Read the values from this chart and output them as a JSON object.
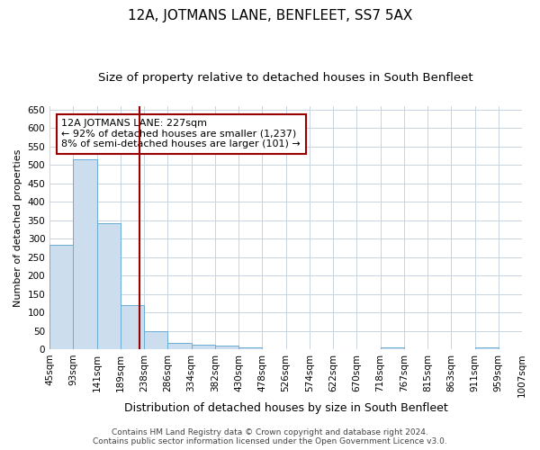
{
  "title": "12A, JOTMANS LANE, BENFLEET, SS7 5AX",
  "subtitle": "Size of property relative to detached houses in South Benfleet",
  "xlabel": "Distribution of detached houses by size in South Benfleet",
  "ylabel": "Number of detached properties",
  "footer_line1": "Contains HM Land Registry data © Crown copyright and database right 2024.",
  "footer_line2": "Contains public sector information licensed under the Open Government Licence v3.0.",
  "annotation_line1": "12A JOTMANS LANE: 227sqm",
  "annotation_line2": "← 92% of detached houses are smaller (1,237)",
  "annotation_line3": "8% of semi-detached houses are larger (101) →",
  "bar_values": [
    284,
    516,
    341,
    119,
    48,
    17,
    13,
    9,
    5,
    0,
    0,
    0,
    0,
    0,
    6,
    0,
    0,
    0,
    5,
    0
  ],
  "categories": [
    "45sqm",
    "93sqm",
    "141sqm",
    "189sqm",
    "238sqm",
    "286sqm",
    "334sqm",
    "382sqm",
    "430sqm",
    "478sqm",
    "526sqm",
    "574sqm",
    "622sqm",
    "670sqm",
    "718sqm",
    "767sqm",
    "815sqm",
    "863sqm",
    "911sqm",
    "959sqm",
    "1007sqm"
  ],
  "bar_color": "#ccdded",
  "bar_edge_color": "#6aadd5",
  "vline_color": "#990000",
  "annotation_box_color": "#990000",
  "ylim": [
    0,
    660
  ],
  "yticks": [
    0,
    50,
    100,
    150,
    200,
    250,
    300,
    350,
    400,
    450,
    500,
    550,
    600,
    650
  ],
  "bg_color": "#ffffff",
  "grid_color": "#c8d4e0",
  "title_fontsize": 11,
  "subtitle_fontsize": 9.5,
  "xlabel_fontsize": 9,
  "ylabel_fontsize": 8,
  "tick_fontsize": 7.5,
  "annotation_fontsize": 8,
  "footer_fontsize": 6.5
}
